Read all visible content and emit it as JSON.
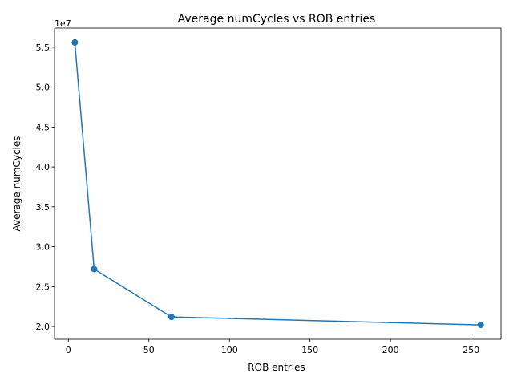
{
  "chart_data": {
    "type": "line",
    "title": "Average numCycles vs ROB entries",
    "xlabel": "ROB entries",
    "ylabel": "Average numCycles",
    "y_offset_label": "1e7",
    "xlim": [
      -8.6,
      268.6
    ],
    "ylim": [
      1.84,
      5.74
    ],
    "x_ticks": [
      0,
      50,
      100,
      150,
      200,
      250
    ],
    "x_tick_labels": [
      "0",
      "50",
      "100",
      "150",
      "200",
      "250"
    ],
    "y_ticks": [
      2.0,
      2.5,
      3.0,
      3.5,
      4.0,
      4.5,
      5.0,
      5.5
    ],
    "y_tick_labels": [
      "2.0",
      "2.5",
      "3.0",
      "3.5",
      "4.0",
      "4.5",
      "5.0",
      "5.5"
    ],
    "grid": false,
    "legend": "none",
    "color": "#1f77b4",
    "marker": "circle",
    "series": [
      {
        "x": [
          4,
          16,
          64,
          256
        ],
        "y": [
          55600000,
          27200000,
          21200000,
          20200000
        ]
      }
    ]
  }
}
